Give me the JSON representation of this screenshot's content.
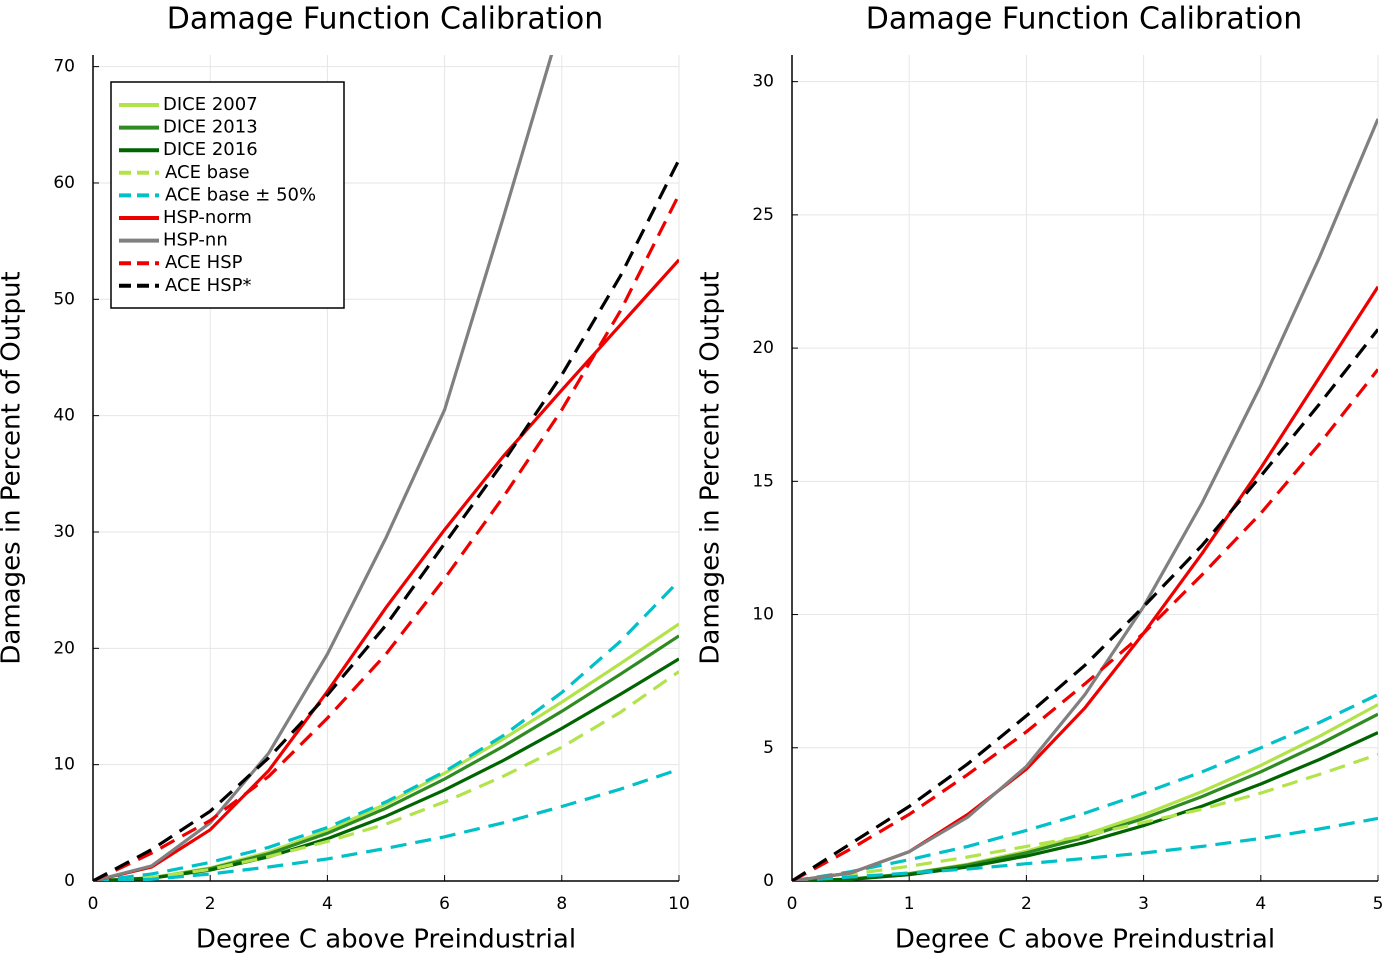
{
  "chart_data": [
    {
      "type": "line",
      "title": "Damage Function Calibration",
      "x_label": "Degree C above Preindustrial",
      "y_label": "Damages in Percent of Output",
      "x": [
        0,
        1,
        2,
        3,
        4,
        5,
        6,
        7,
        8,
        9,
        10
      ],
      "xlim": [
        0,
        10
      ],
      "xticks": [
        0,
        2,
        4,
        6,
        8,
        10
      ],
      "ylim": [
        0,
        71
      ],
      "yticks": [
        0,
        10,
        20,
        30,
        40,
        50,
        60,
        70
      ],
      "grid": true,
      "legend": "top-left",
      "series": [
        {
          "name": "DICE 2007",
          "color": "#b2e34a",
          "dash": false,
          "values": [
            0,
            0.28,
            1.12,
            2.49,
            4.34,
            6.62,
            9.27,
            12.21,
            15.38,
            18.69,
            22.1
          ]
        },
        {
          "name": "DICE 2013",
          "color": "#2e8b22",
          "dash": false,
          "values": [
            0,
            0.27,
            1.06,
            2.35,
            4.1,
            6.26,
            8.77,
            11.57,
            14.59,
            17.78,
            21.07
          ]
        },
        {
          "name": "DICE 2016",
          "color": "#006400",
          "dash": false,
          "values": [
            0,
            0.24,
            0.94,
            2.08,
            3.64,
            5.57,
            7.83,
            10.36,
            13.12,
            16.05,
            19.09
          ]
        },
        {
          "name": "ACE base",
          "color": "#b2e34a",
          "dash": true,
          "values": [
            0,
            0.3,
            1.0,
            2.1,
            3.4,
            4.9,
            6.8,
            9.0,
            11.5,
            14.5,
            18.0
          ]
        },
        {
          "name": "ACE base ± 50%",
          "color": "#00c0c8",
          "dash": true,
          "values": [
            0,
            0.6,
            1.6,
            2.9,
            4.6,
            6.8,
            9.4,
            12.5,
            16.2,
            20.6,
            25.8
          ],
          "lower_values": [
            0,
            0.15,
            0.6,
            1.2,
            1.9,
            2.8,
            3.8,
            5.0,
            6.4,
            7.9,
            9.6
          ]
        },
        {
          "name": "HSP-norm",
          "color": "#ee0000",
          "dash": false,
          "values": [
            0,
            1.2,
            4.4,
            9.5,
            16.3,
            23.5,
            30.2,
            36.5,
            42.2,
            47.8,
            53.4
          ]
        },
        {
          "name": "HSP-nn",
          "color": "#808080",
          "dash": false,
          "values": [
            0,
            1.3,
            5.0,
            11.0,
            19.5,
            29.5,
            40.5,
            57.0,
            74.0,
            null,
            null
          ]
        },
        {
          "name": "ACE HSP",
          "color": "#ee0000",
          "dash": true,
          "values": [
            0,
            2.4,
            5.2,
            9.0,
            14.0,
            19.5,
            26.0,
            33.0,
            40.5,
            49.0,
            59.0
          ]
        },
        {
          "name": "ACE HSP*",
          "color": "#000000",
          "dash": true,
          "values": [
            0,
            2.7,
            6.0,
            10.6,
            16.0,
            22.0,
            29.0,
            36.0,
            43.5,
            52.0,
            62.0
          ]
        }
      ]
    },
    {
      "type": "line",
      "title": "Damage Function Calibration",
      "x_label": "Degree C above Preindustrial",
      "y_label": "Damages in Percent of Output",
      "x": [
        0,
        0.5,
        1,
        1.5,
        2,
        2.5,
        3,
        3.5,
        4,
        4.5,
        5
      ],
      "xlim": [
        0,
        5
      ],
      "xticks": [
        0,
        1,
        2,
        3,
        4,
        5
      ],
      "ylim": [
        0,
        31
      ],
      "yticks": [
        0,
        5,
        10,
        15,
        20,
        25,
        30
      ],
      "grid": true,
      "legend": "none",
      "series": [
        {
          "name": "DICE 2007",
          "color": "#b2e34a",
          "dash": false,
          "values": [
            0,
            0.07,
            0.28,
            0.63,
            1.12,
            1.74,
            2.49,
            3.36,
            4.34,
            5.43,
            6.62
          ]
        },
        {
          "name": "DICE 2013",
          "color": "#2e8b22",
          "dash": false,
          "values": [
            0,
            0.07,
            0.27,
            0.6,
            1.06,
            1.64,
            2.35,
            3.17,
            4.1,
            5.13,
            6.26
          ]
        },
        {
          "name": "DICE 2016",
          "color": "#006400",
          "dash": false,
          "values": [
            0,
            0.06,
            0.24,
            0.53,
            0.94,
            1.45,
            2.08,
            2.81,
            3.64,
            4.56,
            5.57
          ]
        },
        {
          "name": "ACE base",
          "color": "#b2e34a",
          "dash": true,
          "values": [
            0,
            0.25,
            0.55,
            0.9,
            1.3,
            1.7,
            2.2,
            2.7,
            3.3,
            4.0,
            4.75
          ]
        },
        {
          "name": "ACE base ± 50%",
          "color": "#00c0c8",
          "dash": true,
          "values": [
            0,
            0.35,
            0.8,
            1.3,
            1.9,
            2.55,
            3.3,
            4.1,
            5.0,
            5.95,
            7.0
          ],
          "lower_values": [
            0,
            0.15,
            0.3,
            0.45,
            0.65,
            0.85,
            1.05,
            1.3,
            1.6,
            1.95,
            2.35
          ]
        },
        {
          "name": "HSP-norm",
          "color": "#ee0000",
          "dash": false,
          "values": [
            0,
            0.3,
            1.1,
            2.5,
            4.2,
            6.5,
            9.3,
            12.3,
            15.5,
            18.9,
            22.3
          ]
        },
        {
          "name": "HSP-nn",
          "color": "#808080",
          "dash": false,
          "values": [
            0,
            0.3,
            1.1,
            2.4,
            4.3,
            7.0,
            10.3,
            14.2,
            18.6,
            23.4,
            28.6
          ]
        },
        {
          "name": "ACE HSP",
          "color": "#ee0000",
          "dash": true,
          "values": [
            0,
            1.2,
            2.5,
            4.0,
            5.6,
            7.4,
            9.3,
            11.5,
            13.8,
            16.4,
            19.2
          ]
        },
        {
          "name": "ACE HSP*",
          "color": "#000000",
          "dash": true,
          "values": [
            0,
            1.4,
            2.8,
            4.4,
            6.2,
            8.1,
            10.3,
            12.6,
            15.2,
            17.9,
            20.7
          ]
        }
      ]
    }
  ]
}
